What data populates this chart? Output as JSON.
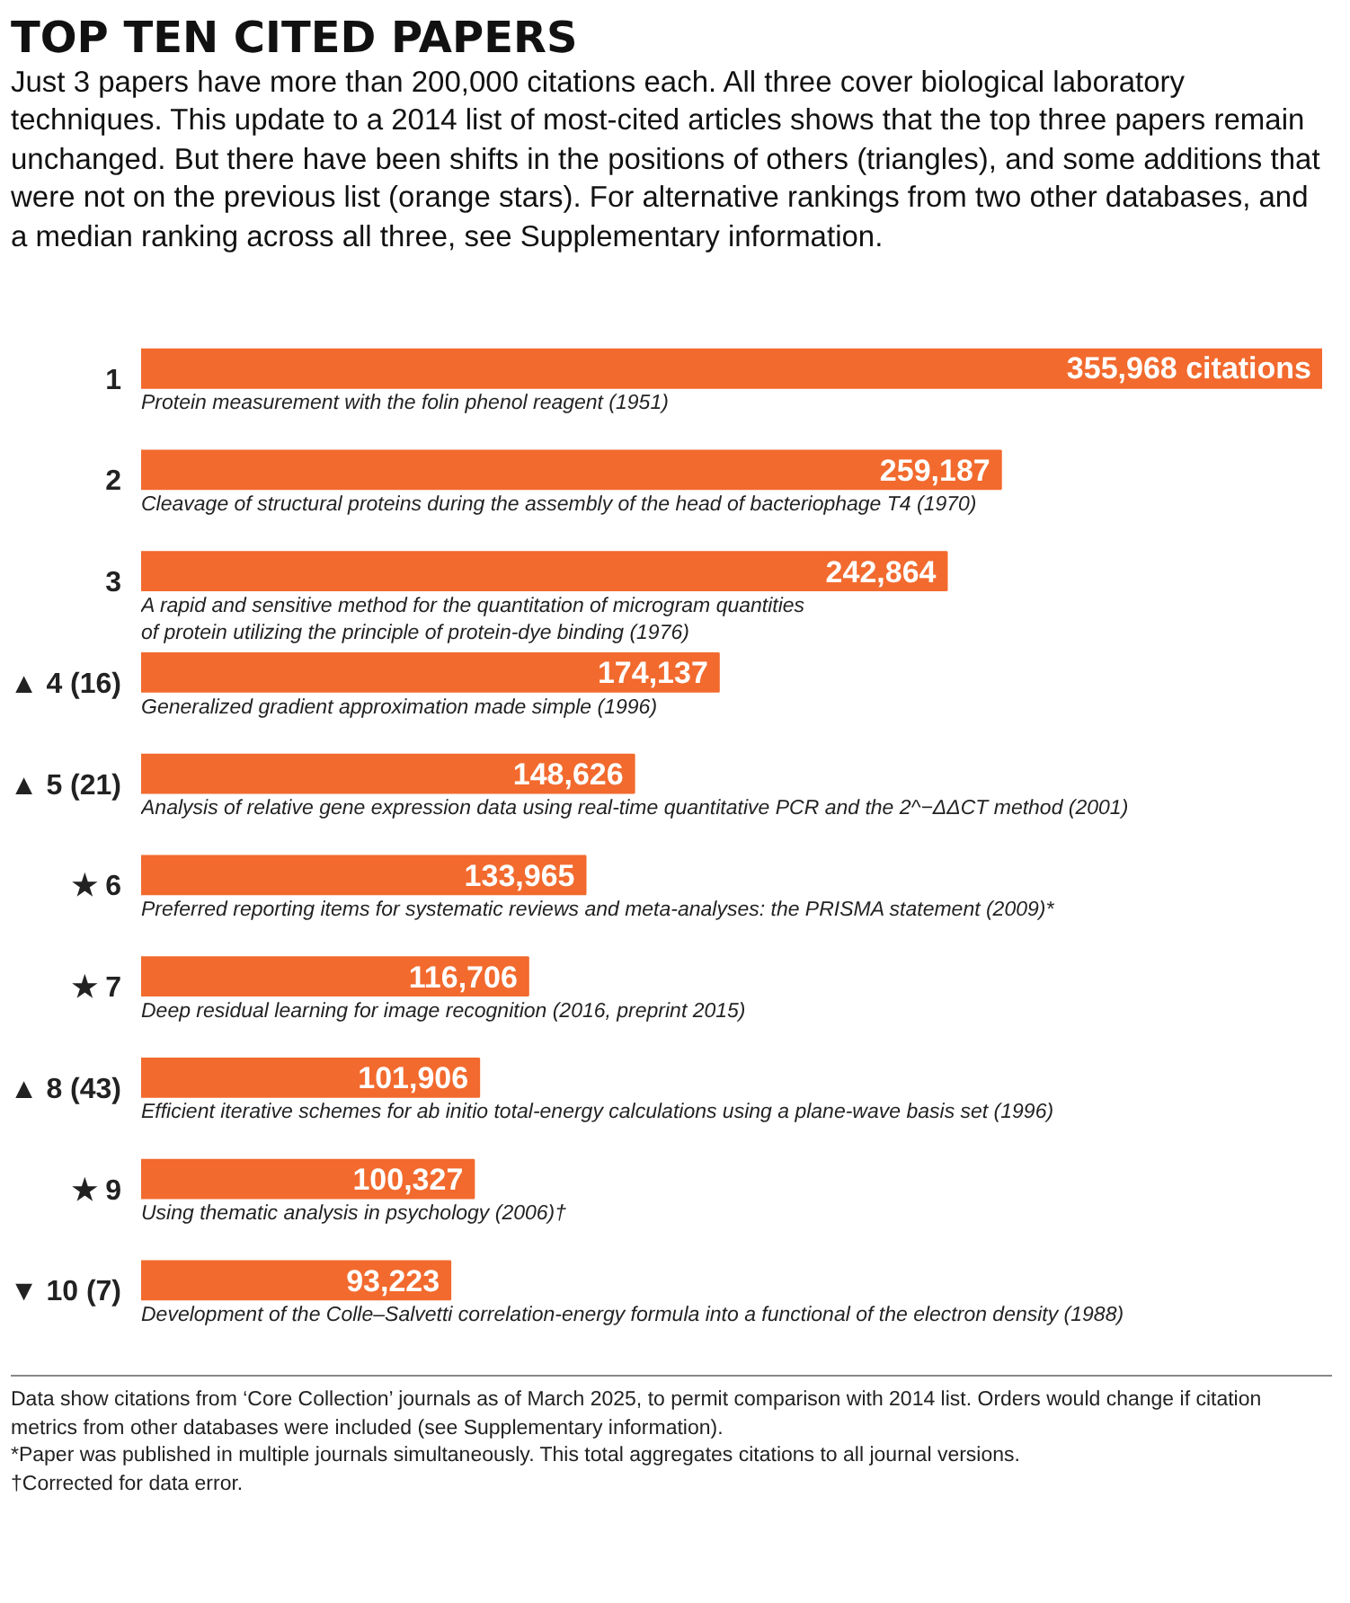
{
  "chart_data": {
    "type": "bar",
    "orientation": "horizontal",
    "title": "TOP TEN CITED PAPERS",
    "subtitle": "Just 3 papers have more than 200,000 citations each. All three cover biological laboratory techniques. This update to a 2014 list of most-cited articles shows that the top three papers remain unchanged. But there have been shifts in the positions of others (triangles), and some additions that were not on the previous list (orange stars). For alternative rankings from two other databases, and a median ranking across all three, see Supplementary information.",
    "categories": [
      "1",
      "2",
      "3",
      "▲ 4 (16)",
      "▲ 5 (21)",
      "★ 6",
      "★ 7",
      "▲ 8 (43)",
      "★ 9",
      "▼ 10 (7)"
    ],
    "values": [
      355968,
      259187,
      242864,
      174137,
      148626,
      133965,
      116706,
      101906,
      100327,
      93223
    ],
    "value_labels": [
      "355,968 citations",
      "259,187",
      "242,864",
      "174,137",
      "148,626",
      "133,965",
      "116,706",
      "101,906",
      "100,327",
      "93,223"
    ],
    "color": "#f26a2e",
    "annotations": [
      "Protein measurement with the folin phenol reagent (1951)",
      "Cleavage of structural proteins during the assembly of the head of bacteriophage T4 (1970)",
      "A rapid and sensitive method for the quantitation of microgram quantities\nof protein utilizing the principle of protein-dye binding (1976)",
      "Generalized gradient approximation made simple (1996)",
      "Analysis of relative gene expression data using real-time quantitative PCR and the 2^−ΔΔCT method (2001)",
      "Preferred reporting items for systematic reviews and meta-analyses: the PRISMA statement (2009)*",
      "Deep residual learning for image recognition (2016, preprint 2015)",
      "Efficient iterative schemes for ab initio total-energy calculations using a plane-wave basis set (1996)",
      "Using thematic analysis in psychology (2006)†",
      "Development of the Colle–Salvetti correlation-energy formula into a functional of the electron density (1988)",
      "Data show citations from ‘Core Collection’ journals as of March 2025, to permit comparison with 2014 list. Orders would change if citation metrics from other databases were included (see Supplementary information).",
      "*Paper was published in multiple journals simultaneously. This total aggregates citations to all journal versions.",
      "†Corrected for data error."
    ]
  }
}
